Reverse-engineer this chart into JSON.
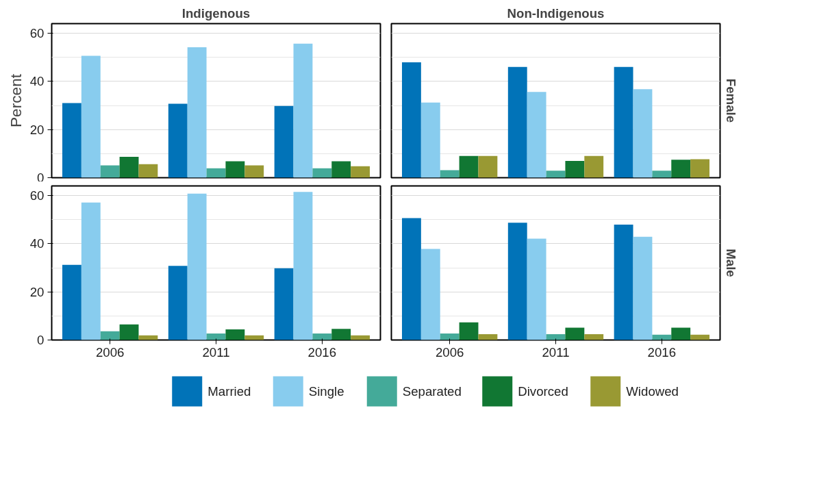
{
  "chart_data": [
    {
      "type": "bar",
      "title": "Indigenous",
      "ylabel": "Percent",
      "categories": [
        "2006",
        "2011",
        "2016"
      ],
      "ylim": [
        0,
        64
      ],
      "yticks": [
        0,
        20,
        40,
        60
      ],
      "grid": "y",
      "tick_labels": "y",
      "series": [
        {
          "color": "#0173b8",
          "values": [
            31.0,
            30.7,
            29.8
          ]
        },
        {
          "color": "#88ccee",
          "values": [
            50.6,
            54.2,
            55.7
          ]
        },
        {
          "color": "#44aa99",
          "values": [
            5.1,
            3.9,
            3.9
          ]
        },
        {
          "color": "#117733",
          "values": [
            8.7,
            6.8,
            6.8
          ]
        },
        {
          "color": "#999933",
          "values": [
            5.6,
            5.1,
            4.8
          ]
        }
      ]
    },
    {
      "type": "bar",
      "title": "Non-Indigenous",
      "y2label": "Female",
      "categories": [
        "2006",
        "2011",
        "2016"
      ],
      "ylim": [
        0,
        64
      ],
      "yticks": [
        0,
        20,
        40,
        60
      ],
      "grid": "y",
      "tick_labels": false,
      "series": [
        {
          "color": "#0173b8",
          "values": [
            47.9,
            46.0,
            46.0
          ]
        },
        {
          "color": "#88ccee",
          "values": [
            31.2,
            35.6,
            36.8
          ]
        },
        {
          "color": "#44aa99",
          "values": [
            3.1,
            2.9,
            2.9
          ]
        },
        {
          "color": "#117733",
          "values": [
            9.0,
            7.0,
            7.5
          ]
        },
        {
          "color": "#999933",
          "values": [
            9.0,
            9.0,
            7.7
          ]
        }
      ]
    },
    {
      "type": "bar",
      "categories": [
        "2006",
        "2011",
        "2016"
      ],
      "ylim": [
        0,
        64
      ],
      "yticks": [
        0,
        20,
        40,
        60
      ],
      "grid": "y",
      "series": [
        {
          "color": "#0173b8",
          "values": [
            31.2,
            30.8,
            29.8
          ]
        },
        {
          "color": "#88ccee",
          "values": [
            57.1,
            60.8,
            61.5
          ]
        },
        {
          "color": "#44aa99",
          "values": [
            3.6,
            2.7,
            2.7
          ]
        },
        {
          "color": "#117733",
          "values": [
            6.5,
            4.4,
            4.6
          ]
        },
        {
          "color": "#999933",
          "values": [
            1.9,
            1.9,
            1.9
          ]
        }
      ]
    },
    {
      "type": "bar",
      "y2label": "Male",
      "categories": [
        "2006",
        "2011",
        "2016"
      ],
      "ylim": [
        0,
        64
      ],
      "yticks": [
        0,
        20,
        40,
        60
      ],
      "grid": "y",
      "tick_labels": "x",
      "legend": "bottom",
      "series": [
        {
          "name": "Married",
          "color": "#0173b8",
          "values": [
            50.6,
            48.7,
            47.9
          ]
        },
        {
          "name": "Single",
          "color": "#88ccee",
          "values": [
            37.8,
            42.1,
            42.9
          ]
        },
        {
          "name": "Separated",
          "color": "#44aa99",
          "values": [
            2.7,
            2.4,
            2.2
          ]
        },
        {
          "name": "Divorced",
          "color": "#117733",
          "values": [
            7.3,
            5.1,
            5.1
          ]
        },
        {
          "name": "Widowed",
          "color": "#999933",
          "values": [
            2.4,
            2.4,
            2.2
          ]
        }
      ]
    }
  ]
}
